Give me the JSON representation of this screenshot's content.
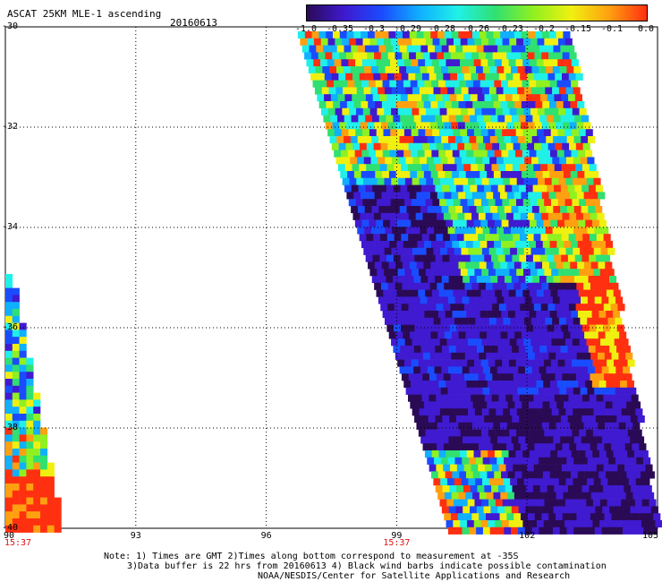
{
  "header": {
    "title": "ASCAT 25KM MLE-1 ascending",
    "date": "20160613"
  },
  "colors": {
    "colorscale": [
      "#2a0a55",
      "#3f1ad0",
      "#1a4cff",
      "#10b0ff",
      "#20f0e8",
      "#30e070",
      "#90f020",
      "#f0f010",
      "#ffa010",
      "#ff3010"
    ]
  },
  "colorbar": {
    "ticks": [
      "-1.0",
      "-0.35",
      "-0.3",
      "-0.29",
      "-0.28",
      "-0.26",
      "-0.23",
      "-0.2",
      "-0.15",
      "-0.1",
      "0.0"
    ]
  },
  "axes": {
    "y_ticks": [
      "-30",
      "-32",
      "-34",
      "-36",
      "-38",
      "-40"
    ],
    "x_ticks": [
      "90",
      "93",
      "96",
      "99",
      "102",
      "105"
    ],
    "x_range": [
      90,
      105
    ],
    "y_range": [
      -40,
      -30
    ],
    "time_labels": [
      {
        "lon": 90,
        "text": "15:37"
      },
      {
        "lon": 99,
        "text": "15:37"
      }
    ]
  },
  "notes": {
    "line1": "Note: 1) Times are GMT 2)Times along bottom correspond to measurement at -35S",
    "line2": "3)Data buffer is 22 hrs from 20160613 4) Black wind barbs indicate possible contamination",
    "line3": "NOAA/NESDIS/Center for Satellite Applications and Research"
  }
}
